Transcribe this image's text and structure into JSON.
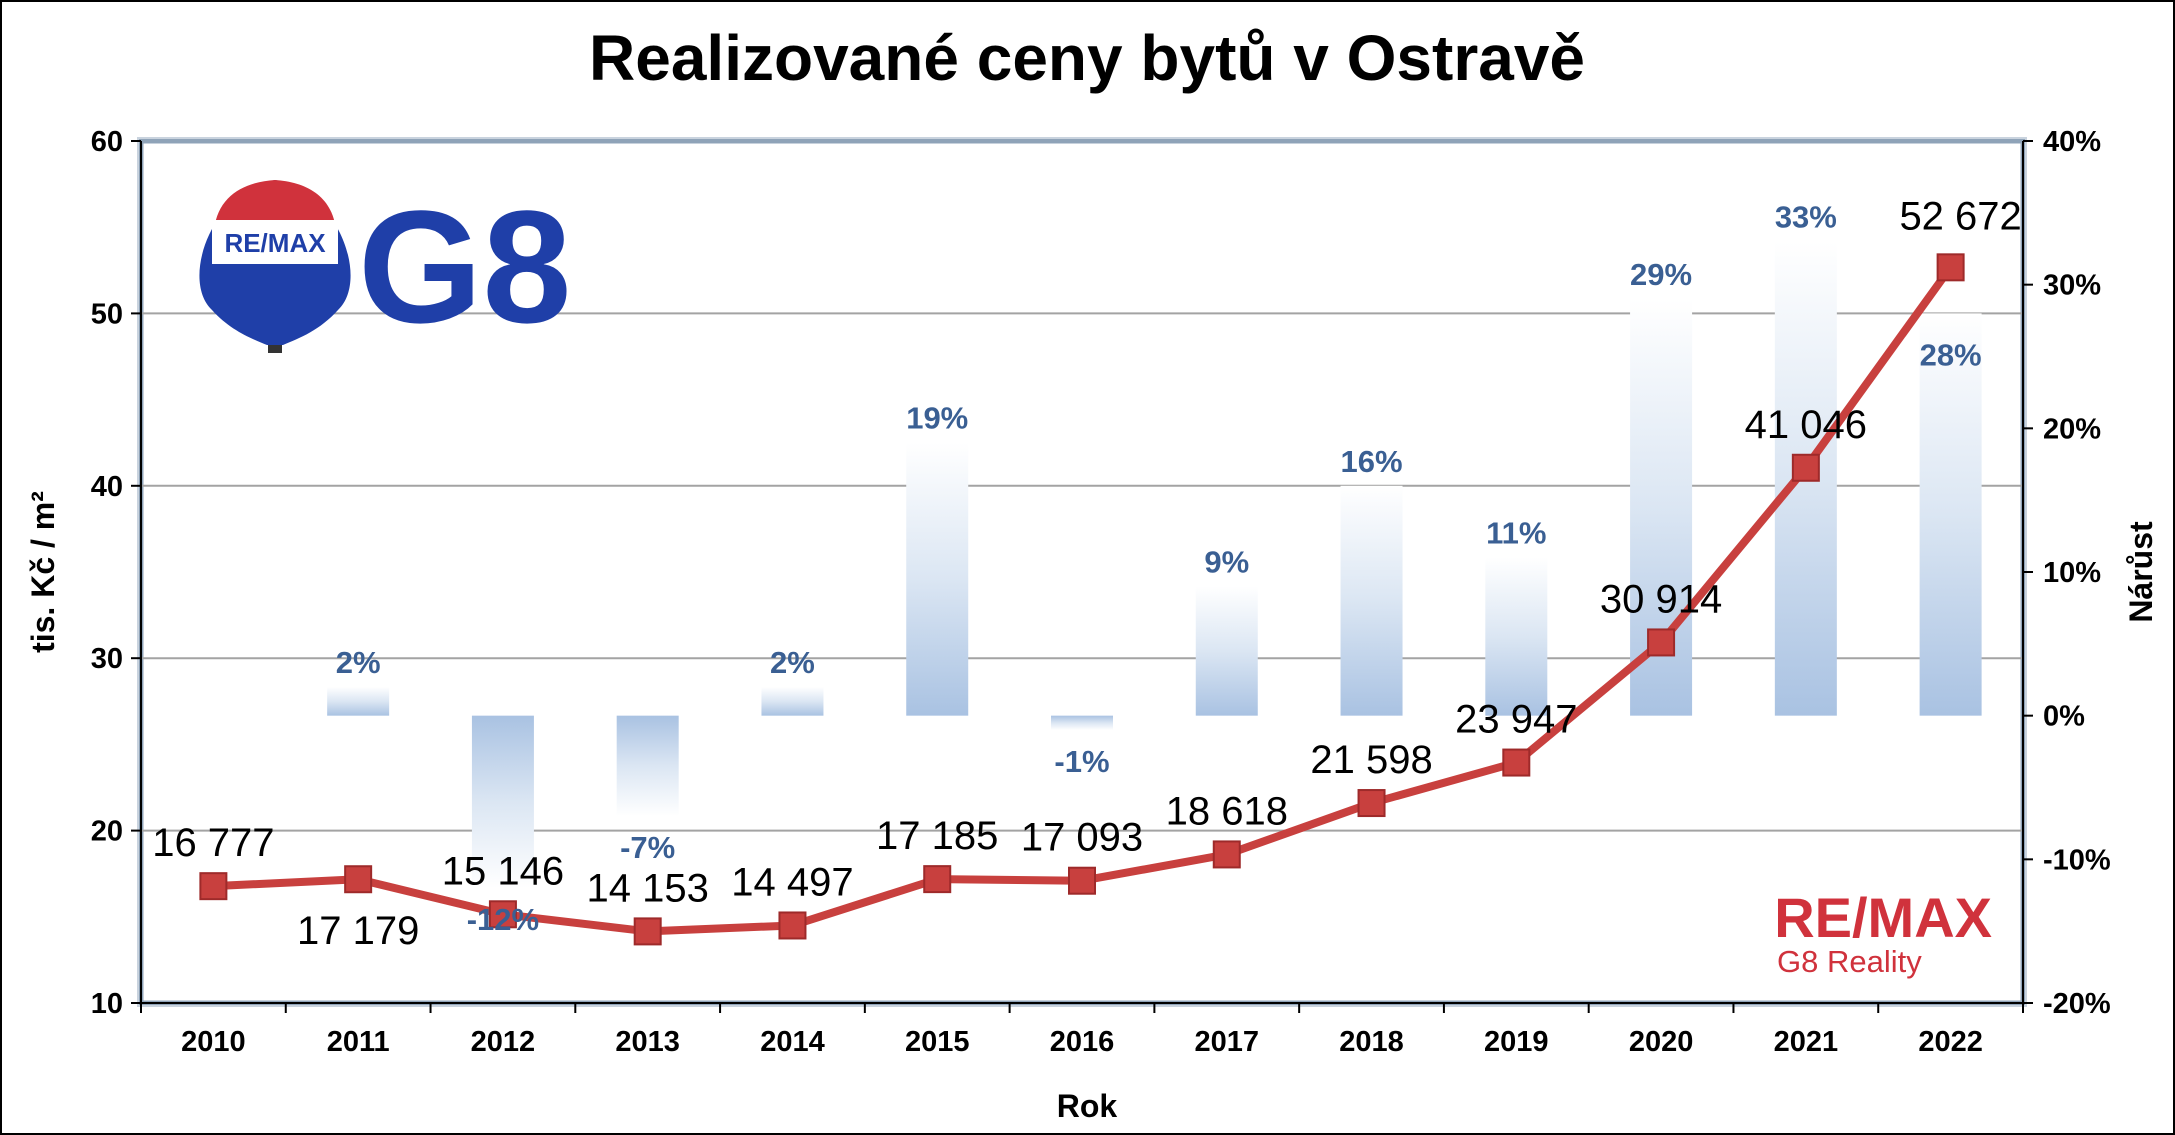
{
  "chart_data": {
    "type": "bar+line",
    "title": "Realizované ceny bytů v Ostravě",
    "xlabel": "Rok",
    "ylabel_left": "tis. Kč / m²",
    "ylabel_right": "Nárůst",
    "categories": [
      "2010",
      "2011",
      "2012",
      "2013",
      "2014",
      "2015",
      "2016",
      "2017",
      "2018",
      "2019",
      "2020",
      "2021",
      "2022"
    ],
    "ylim_left": [
      10,
      60
    ],
    "yticks_left": [
      "10",
      "20",
      "30",
      "40",
      "50",
      "60"
    ],
    "ylim_right": [
      -20,
      40
    ],
    "yticks_right": [
      "-20%",
      "-10%",
      "0%",
      "10%",
      "20%",
      "30%",
      "40%"
    ],
    "grid": "horizontal",
    "series": [
      {
        "kind": "line",
        "axis": "left",
        "color": "#c8403e",
        "values": [
          16.777,
          17.179,
          15.146,
          14.153,
          14.497,
          17.185,
          17.093,
          18.618,
          21.598,
          23.947,
          30.914,
          41.046,
          52.672
        ],
        "labels": [
          "16 777",
          "17 179",
          "15 146",
          "14 153",
          "14 497",
          "17 185",
          "17 093",
          "18 618",
          "21 598",
          "23 947",
          "30 914",
          "41 046",
          "52 672"
        ]
      },
      {
        "kind": "bar",
        "axis": "right",
        "color": "#b9cde6",
        "values": [
          null,
          2,
          -12,
          -7,
          2,
          19,
          -1,
          9,
          16,
          11,
          29,
          33,
          28
        ],
        "labels": [
          "",
          "2%",
          "-12%",
          "-7%",
          "2%",
          "19%",
          "-1%",
          "9%",
          "16%",
          "11%",
          "29%",
          "33%",
          "28%"
        ]
      }
    ]
  },
  "logos": {
    "top_left": {
      "balloon_text": "RE/MAX",
      "brand_text": "G8",
      "colors": {
        "red": "#d0323c",
        "blue": "#1f3fa8"
      }
    },
    "bottom_right": {
      "brand": "RE/MAX",
      "subtitle": "G8 Reality",
      "color": "#d0323c"
    }
  }
}
